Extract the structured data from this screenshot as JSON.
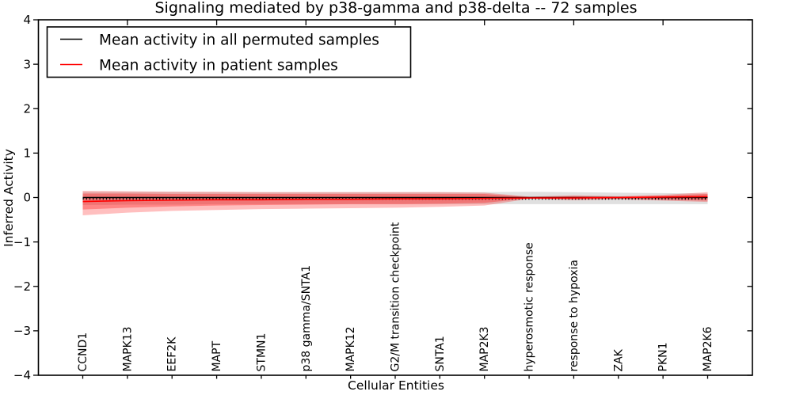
{
  "chart_data": {
    "type": "line",
    "title": "Signaling mediated by p38-gamma and p38-delta -- 72 samples",
    "xlabel": "Cellular Entities",
    "ylabel": "Inferred Activity",
    "ylim": [
      -4,
      4
    ],
    "grid": false,
    "legend_position": "upper left",
    "yticks": [
      4,
      3,
      2,
      1,
      0,
      -1,
      -2,
      -3,
      -4
    ],
    "ytick_labels": [
      "4",
      "3",
      "2",
      "1",
      "0",
      "−1",
      "−2",
      "−3",
      "−4"
    ],
    "categories": [
      "CCND1",
      "MAPK13",
      "EEF2K",
      "MAPT",
      "STMN1",
      "p38 gamma/SNTA1",
      "MAPK12",
      "G2/M transition checkpoint",
      "SNTA1",
      "MAP2K3",
      "hyperosmotic response",
      "response to hypoxia",
      "ZAK",
      "PKN1",
      "MAP2K6"
    ],
    "legend": [
      {
        "label": "Mean activity in all permuted samples",
        "color": "#000000"
      },
      {
        "label": "Mean activity in patient samples",
        "color": "#ff0000"
      }
    ],
    "series": [
      {
        "name": "Mean activity in all permuted samples",
        "color": "#000000",
        "values": [
          0.0,
          0.0,
          0.0,
          0.0,
          0.0,
          0.0,
          0.0,
          0.0,
          0.0,
          0.0,
          0.0,
          0.0,
          0.0,
          0.0,
          0.0
        ]
      },
      {
        "name": "Mean activity in patient samples",
        "color": "#ff0000",
        "values": [
          -0.09,
          -0.07,
          -0.06,
          -0.05,
          -0.05,
          -0.04,
          -0.04,
          -0.03,
          -0.03,
          -0.02,
          -0.01,
          -0.01,
          0.0,
          0.01,
          0.02
        ]
      }
    ],
    "bands": [
      {
        "name": "permuted-std-band",
        "color": "#000000",
        "opacity": 0.12,
        "upper": [
          0.13,
          0.13,
          0.13,
          0.12,
          0.12,
          0.12,
          0.12,
          0.12,
          0.12,
          0.12,
          0.13,
          0.12,
          0.11,
          0.1,
          0.09
        ],
        "lower": [
          -0.17,
          -0.16,
          -0.16,
          -0.15,
          -0.15,
          -0.15,
          -0.15,
          -0.15,
          -0.15,
          -0.15,
          -0.15,
          -0.15,
          -0.15,
          -0.15,
          -0.15
        ]
      },
      {
        "name": "patient-outer-band",
        "color": "#ff0000",
        "opacity": 0.25,
        "upper": [
          0.15,
          0.14,
          0.13,
          0.13,
          0.12,
          0.12,
          0.12,
          0.12,
          0.12,
          0.11,
          0.02,
          0.05,
          0.03,
          0.06,
          0.12
        ],
        "lower": [
          -0.4,
          -0.34,
          -0.3,
          -0.28,
          -0.26,
          -0.25,
          -0.24,
          -0.23,
          -0.21,
          -0.18,
          -0.03,
          -0.06,
          -0.04,
          -0.07,
          -0.1
        ]
      },
      {
        "name": "patient-inner-band",
        "color": "#ff0000",
        "opacity": 0.3,
        "upper": [
          0.09,
          0.09,
          0.08,
          0.08,
          0.08,
          0.08,
          0.08,
          0.08,
          0.08,
          0.08,
          0.01,
          0.03,
          0.02,
          0.04,
          0.08
        ],
        "lower": [
          -0.27,
          -0.23,
          -0.2,
          -0.18,
          -0.17,
          -0.16,
          -0.15,
          -0.15,
          -0.14,
          -0.12,
          -0.02,
          -0.04,
          -0.03,
          -0.05,
          -0.07
        ]
      }
    ]
  }
}
